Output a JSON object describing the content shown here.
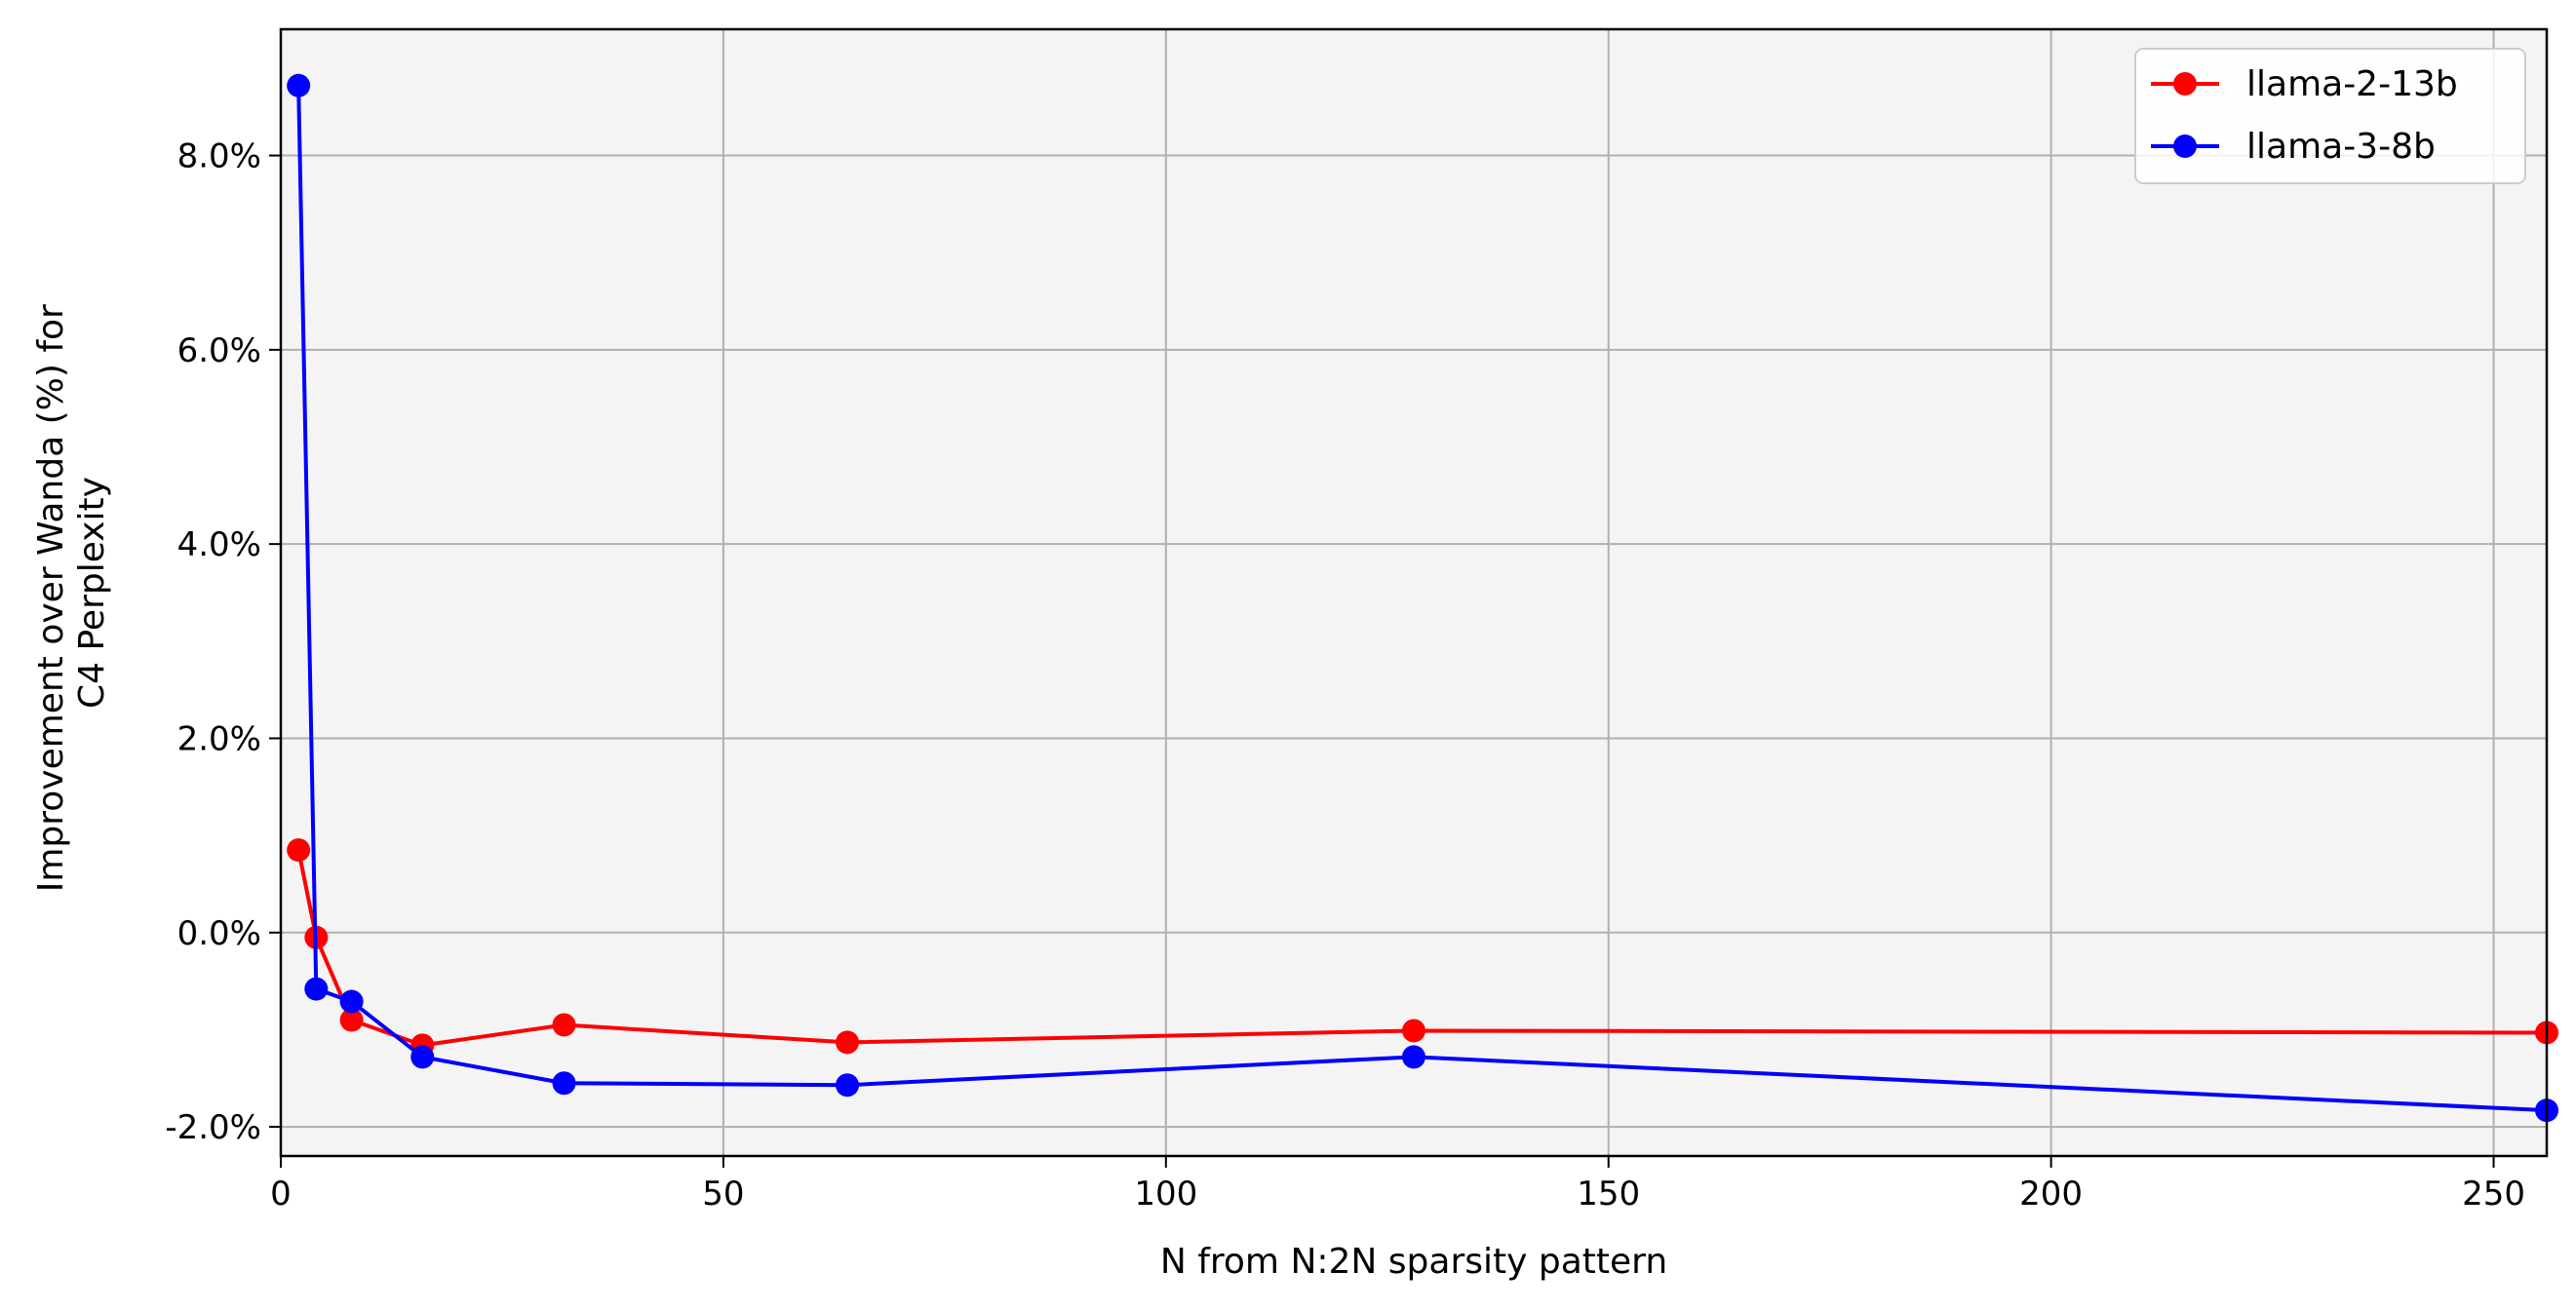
{
  "chart_data": {
    "type": "line",
    "title": "",
    "xlabel": "N from N:2N sparsity pattern",
    "ylabel_lines": [
      "Improvement over Wanda (%) for",
      "C4 Perplexity"
    ],
    "xlim": [
      0,
      256
    ],
    "ylim": [
      -2.3,
      9.3
    ],
    "x_ticks": [
      0,
      50,
      100,
      150,
      200,
      250
    ],
    "x_tick_labels": [
      "0",
      "50",
      "100",
      "150",
      "200",
      "250"
    ],
    "y_ticks": [
      -2,
      0,
      2,
      4,
      6,
      8
    ],
    "y_tick_labels": [
      "-2.0%",
      "0.0%",
      "2.0%",
      "4.0%",
      "6.0%",
      "8.0%"
    ],
    "grid": true,
    "legend_position": "top-right",
    "x": [
      2,
      4,
      8,
      16,
      32,
      64,
      128,
      256
    ],
    "series": [
      {
        "name": "llama-2-13b",
        "color": "#ff0000",
        "values": [
          0.85,
          -0.05,
          -0.9,
          -1.16,
          -0.95,
          -1.13,
          -1.01,
          -1.03
        ]
      },
      {
        "name": "llama-3-8b",
        "color": "#0000ff",
        "values": [
          8.72,
          -0.58,
          -0.71,
          -1.28,
          -1.55,
          -1.57,
          -1.28,
          -1.83
        ]
      }
    ]
  }
}
